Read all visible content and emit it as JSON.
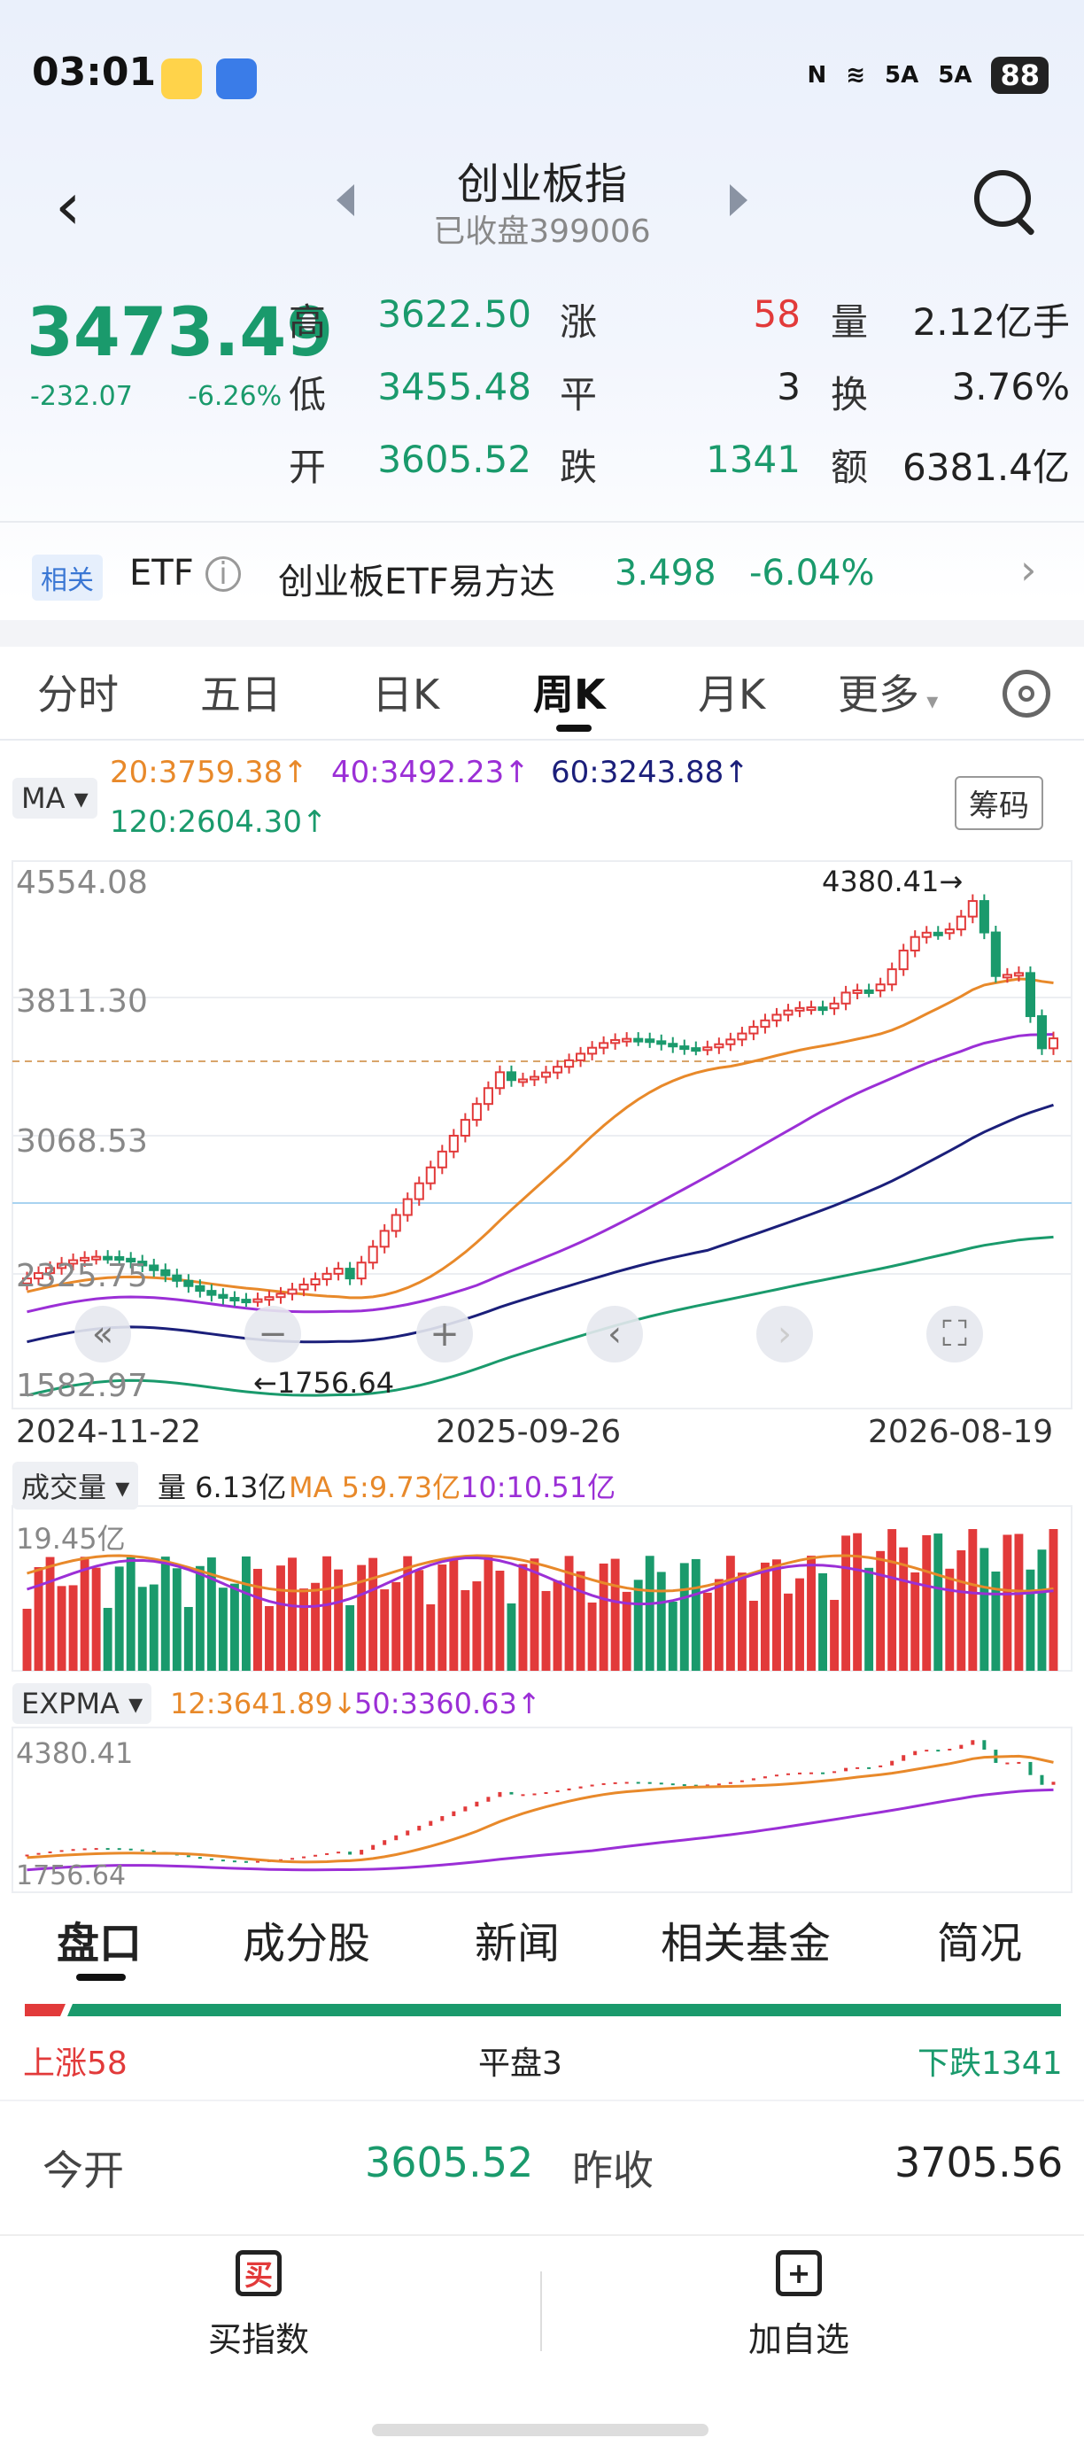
{
  "status_bar": {
    "time": "03:01",
    "battery": "88",
    "signal1": "5A",
    "signal2": "5A"
  },
  "header": {
    "title": "创业板指",
    "subtitle": "已收盘399006"
  },
  "quote": {
    "price": "3473.49",
    "change": "-232.07",
    "change_pct": "-6.26%",
    "high_label": "高",
    "high": "3622.50",
    "low_label": "低",
    "low": "3455.48",
    "open_label": "开",
    "open": "3605.52",
    "up_label": "涨",
    "up": "58",
    "flat_label": "平",
    "flat": "3",
    "down_label": "跌",
    "down": "1341",
    "vol_label": "量",
    "vol": "2.12亿手",
    "turn_label": "换",
    "turn": "3.76%",
    "amt_label": "额",
    "amt": "6381.4亿"
  },
  "etf": {
    "tag": "相关",
    "label": "ETF",
    "name": "创业板ETF易方达",
    "price": "3.498",
    "pct": "-6.04%"
  },
  "tabs": [
    "分时",
    "五日",
    "日K",
    "周K",
    "月K",
    "更多"
  ],
  "ma": {
    "button": "MA",
    "ma20": "20:3759.38",
    "ma40": "40:3492.23",
    "ma60": "60:3243.88",
    "ma120": "120:2604.30",
    "chip_button": "筹码"
  },
  "kline": {
    "y_ticks": [
      "4554.08",
      "3811.30",
      "3068.53",
      "2325.75",
      "1582.97"
    ],
    "high_marker": "4380.41→",
    "low_marker": "←1756.64",
    "dates": [
      "2024-11-22",
      "2025-09-26",
      "2026-08-19"
    ]
  },
  "volume": {
    "button": "成交量",
    "label": "量 6.13亿",
    "ma5": "MA 5:9.73亿",
    "ma10": "10:10.51亿",
    "top_tick": "19.45亿"
  },
  "expma": {
    "button": "EXPMA",
    "e12": "12:3641.89",
    "e50": "50:3360.63",
    "top_tick": "4380.41",
    "bottom_tick": "1756.64"
  },
  "bottom_tabs": [
    "盘口",
    "成分股",
    "新闻",
    "相关基金",
    "简况"
  ],
  "breadth": {
    "up": "上涨58",
    "flat": "平盘3",
    "down": "下跌1341"
  },
  "open_row": {
    "open_label": "今开",
    "open": "3605.52",
    "prev_label": "昨收",
    "prev": "3705.56"
  },
  "actions": {
    "buy": "买指数",
    "buy_icon": "买",
    "add": "加自选"
  },
  "colors": {
    "up": "#e23a3a",
    "down": "#1a9a6c",
    "ma20": "#e8892a",
    "ma40": "#9b2fd6",
    "ma60": "#1b1f7a",
    "ma120": "#1a9a6c"
  }
}
